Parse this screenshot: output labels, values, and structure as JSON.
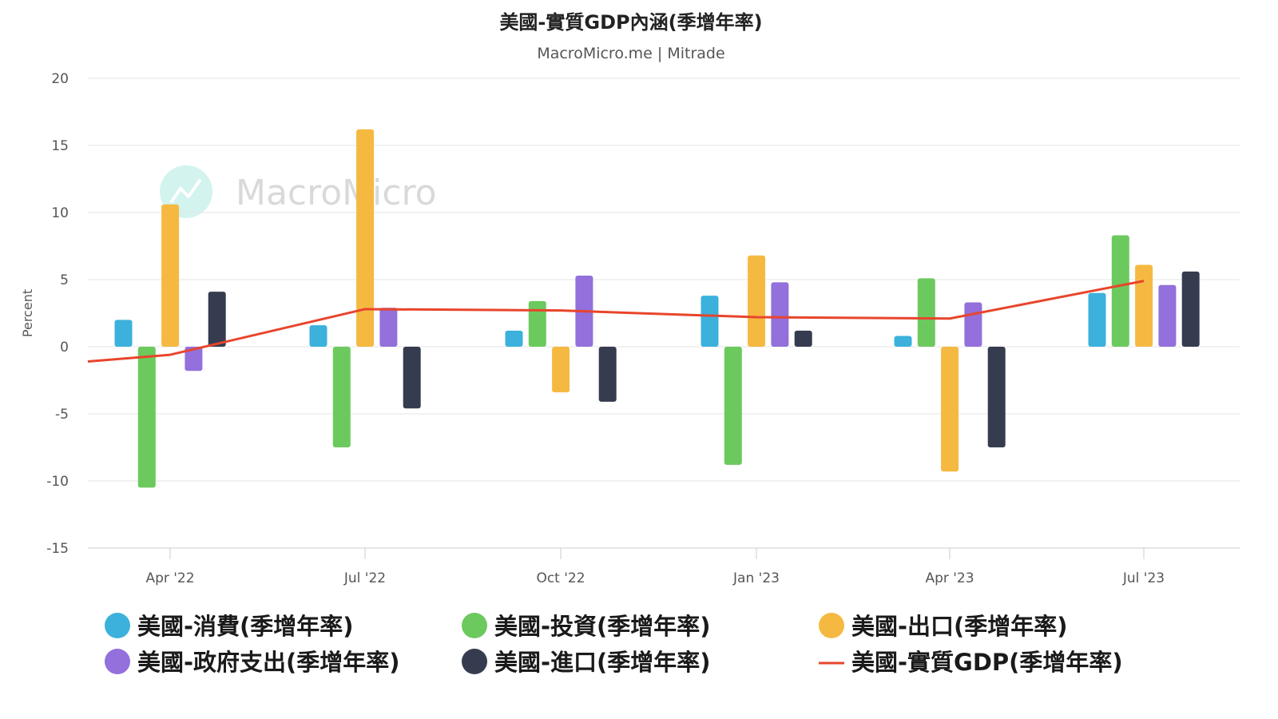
{
  "header": {
    "title": "美國-實質GDP內涵(季增年率)",
    "subtitle": "MacroMicro.me | Mitrade"
  },
  "watermark": {
    "text": "MacroMicro"
  },
  "chart_data": {
    "type": "bar",
    "title": "美國-實質GDP內涵(季增年率)",
    "subtitle": "MacroMicro.me | Mitrade",
    "ylabel": "Percent",
    "ylim": [
      -15,
      20
    ],
    "yticks": [
      20,
      15,
      10,
      5,
      0,
      -5,
      -10,
      -15
    ],
    "categories": [
      "Apr '22",
      "Jul '22",
      "Oct '22",
      "Jan '23",
      "Apr '23",
      "Jul '23"
    ],
    "grid": true,
    "legend_position": "bottom",
    "bar_series": [
      {
        "name": "美國-消費(季增年率)",
        "color": "#3bb1dc",
        "values": [
          2.0,
          1.6,
          1.2,
          3.8,
          0.8,
          4.0
        ]
      },
      {
        "name": "美國-投資(季增年率)",
        "color": "#6cc95e",
        "values": [
          -10.5,
          -7.5,
          3.4,
          -8.8,
          5.1,
          8.3
        ]
      },
      {
        "name": "美國-出口(季增年率)",
        "color": "#f5b942",
        "values": [
          10.6,
          16.2,
          -3.4,
          6.8,
          -9.3,
          6.1
        ]
      },
      {
        "name": "美國-政府支出(季增年率)",
        "color": "#9370db",
        "values": [
          -1.8,
          2.9,
          5.3,
          4.8,
          3.3,
          4.6
        ]
      },
      {
        "name": "美國-進口(季增年率)",
        "color": "#363c4f",
        "values": [
          4.1,
          -4.6,
          -4.1,
          1.2,
          -7.5,
          5.6
        ]
      }
    ],
    "line_series": {
      "name": "美國-實質GDP(季增年率)",
      "color": "#e8452c",
      "values": [
        -0.6,
        2.8,
        2.7,
        2.2,
        2.1,
        4.9
      ],
      "start_value": -1.1
    }
  }
}
